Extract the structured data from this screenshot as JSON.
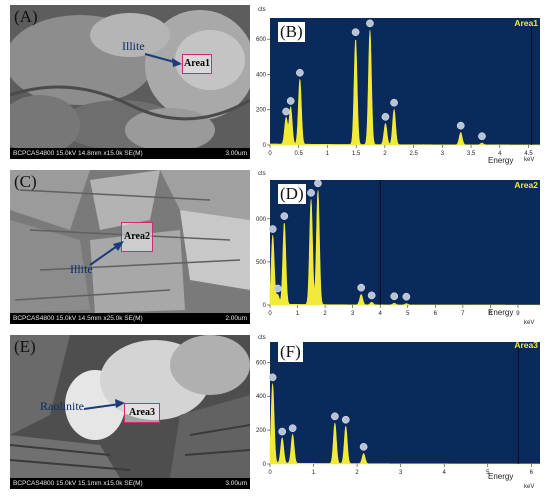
{
  "sem_panels": [
    {
      "label": "(A)",
      "info": "BCPCAS4800 15.0kV 14.8mm x15.0k SE(M)",
      "scale": "3.00um",
      "mineral": "Illite",
      "area": "Area1"
    },
    {
      "label": "(C)",
      "info": "BCPCAS4800 15.0kV 14.5mm x25.0k SE(M)",
      "scale": "2.00um",
      "mineral": "Illite",
      "area": "Area2"
    },
    {
      "label": "(E)",
      "info": "BCPCAS4800 15.0kV 15.1mm x15.0k SE(M)",
      "scale": "3.00um",
      "mineral": "Raolinite",
      "area": "Area3"
    }
  ],
  "colors": {
    "plot_bg": "#0a2a5c",
    "spectrum": "#f2ea3a",
    "box": "#d6287a",
    "arrow": "#1a3d7a"
  },
  "chart_data": [
    {
      "type": "area",
      "panel": "(B)",
      "title": "Area1",
      "ylabel": "cts",
      "xlabel": "Energy",
      "xunit": "keV",
      "xlim": [
        0,
        4.7
      ],
      "ylim": [
        0,
        720
      ],
      "xticks": [
        "0",
        "0.5",
        "1",
        "1.5",
        "2",
        "2.5",
        "3",
        "3.5",
        "4",
        "4.5"
      ],
      "yticks": [
        "0",
        "200",
        "400",
        "600"
      ],
      "peaks": [
        {
          "x": 0.28,
          "y": 150
        },
        {
          "x": 0.36,
          "y": 210
        },
        {
          "x": 0.52,
          "y": 370
        },
        {
          "x": 1.49,
          "y": 600
        },
        {
          "x": 1.74,
          "y": 650
        },
        {
          "x": 2.01,
          "y": 120
        },
        {
          "x": 2.16,
          "y": 200
        },
        {
          "x": 3.32,
          "y": 70
        },
        {
          "x": 3.69,
          "y": 10
        }
      ],
      "marker_x": 4.55
    },
    {
      "type": "area",
      "panel": "(D)",
      "title": "Area2",
      "ylabel": "cts",
      "xlabel": "Energy",
      "xunit": "keV",
      "xlim": [
        0,
        9.8
      ],
      "ylim": [
        0,
        1450
      ],
      "xticks": [
        "0",
        "1",
        "2",
        "3",
        "4",
        "5",
        "6",
        "7",
        "8",
        "9"
      ],
      "yticks": [
        "0",
        "500",
        "1000"
      ],
      "peaks": [
        {
          "x": 0.1,
          "y": 800
        },
        {
          "x": 0.28,
          "y": 110
        },
        {
          "x": 0.52,
          "y": 950
        },
        {
          "x": 1.49,
          "y": 1220
        },
        {
          "x": 1.74,
          "y": 1330
        },
        {
          "x": 3.31,
          "y": 120
        },
        {
          "x": 3.69,
          "y": 30
        },
        {
          "x": 4.51,
          "y": 20
        },
        {
          "x": 4.95,
          "y": 15
        }
      ],
      "marker_x": 4.0
    },
    {
      "type": "area",
      "panel": "(F)",
      "title": "Area3",
      "ylabel": "cts",
      "xlabel": "Energy",
      "xunit": "keV",
      "xlim": [
        0,
        6.2
      ],
      "ylim": [
        0,
        720
      ],
      "xticks": [
        "0",
        "1",
        "2",
        "3",
        "4",
        "5",
        "6"
      ],
      "yticks": [
        "0",
        "200",
        "400",
        "600"
      ],
      "peaks": [
        {
          "x": 0.06,
          "y": 470
        },
        {
          "x": 0.28,
          "y": 150
        },
        {
          "x": 0.52,
          "y": 170
        },
        {
          "x": 1.49,
          "y": 240
        },
        {
          "x": 1.74,
          "y": 220
        },
        {
          "x": 2.15,
          "y": 60
        }
      ],
      "marker_x": 5.7
    }
  ]
}
